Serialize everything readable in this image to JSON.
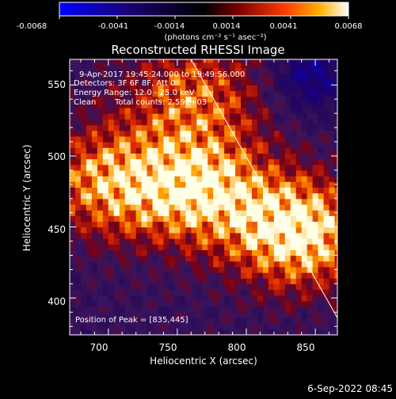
{
  "colorbar": {
    "tick_labels": [
      "-0.0068",
      "-0.0041",
      "-0.0014",
      "0.0014",
      "0.0041",
      "0.0068"
    ],
    "units": "(photons cm⁻² s⁻¹ asec⁻²)",
    "range": [
      -0.0068,
      0.0068
    ]
  },
  "title": "Reconstructed RHESSI Image",
  "annotations": {
    "time_range": "9-Apr-2017 19:45:24.000 to 19:49:56.000",
    "detectors": "Detectors: 3F 6F 8F, Att 0",
    "energy": "Energy Range: 12.0 - 25.0 keV",
    "clean": "Clean",
    "total_counts": "Total counts: 2.59E+03",
    "peak": "Position of Peak = [835,445]"
  },
  "footer_date": "6-Sep-2022 08:45",
  "chart_data": {
    "type": "heatmap",
    "title": "Reconstructed RHESSI Image",
    "xlabel": "Heliocentric X (arcsec)",
    "ylabel": "Heliocentric Y (arcsec)",
    "xlim": [
      672,
      866
    ],
    "ylim": [
      374,
      568
    ],
    "xticks": [
      700,
      750,
      800,
      850
    ],
    "yticks": [
      400,
      450,
      500,
      550
    ],
    "peak": [
      835,
      445
    ],
    "sources": [
      {
        "x": 835,
        "y": 445,
        "amp": 1.0
      },
      {
        "x": 765,
        "y": 475,
        "amp": 0.85
      },
      {
        "x": 700,
        "y": 480,
        "amp": 0.7
      },
      {
        "x": 760,
        "y": 540,
        "amp": 0.55
      }
    ],
    "limb_line": [
      [
        760,
        568
      ],
      [
        866,
        386
      ]
    ]
  }
}
